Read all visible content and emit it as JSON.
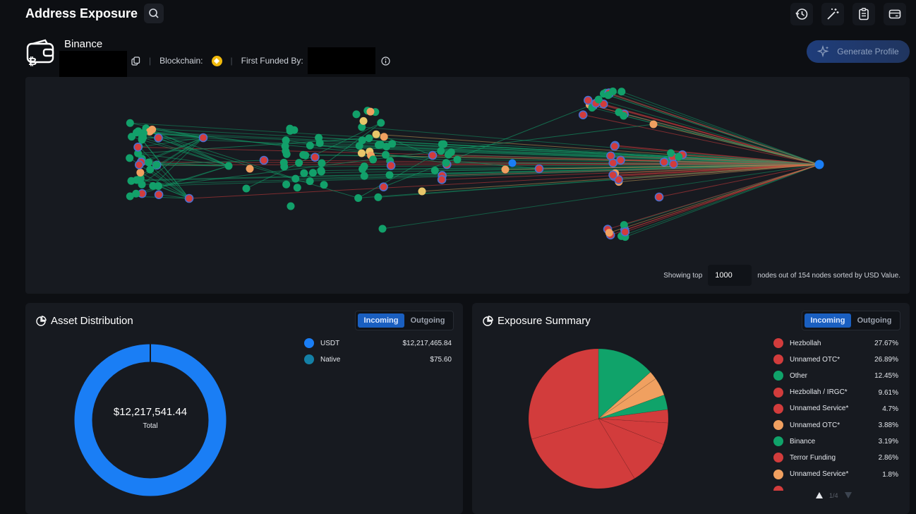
{
  "header": {
    "title": "Address Exposure"
  },
  "entity": {
    "name": "Binance",
    "blockchain_label": "Blockchain:",
    "first_funded_label": "First Funded By:",
    "generate_label": "Generate Profile"
  },
  "graph": {
    "showing_prefix": "Showing top",
    "top_n": "1000",
    "showing_suffix": "nodes out of 154 nodes sorted by USD Value."
  },
  "asset_distribution": {
    "title": "Asset Distribution",
    "toggle": {
      "incoming": "Incoming",
      "outgoing": "Outgoing",
      "selected": "Incoming"
    },
    "total_value": "$12,217,541.44",
    "total_label": "Total",
    "items": [
      {
        "name": "USDT",
        "value": "$12,217,465.84",
        "color": "#1a7ef5"
      },
      {
        "name": "Native",
        "value": "$75.60",
        "color": "#1480a6"
      }
    ]
  },
  "exposure_summary": {
    "title": "Exposure Summary",
    "toggle": {
      "incoming": "Incoming",
      "outgoing": "Outgoing",
      "selected": "Incoming"
    },
    "items": [
      {
        "name": "Hezbollah",
        "value": "27.67%",
        "color": "#d23c3c"
      },
      {
        "name": "Unnamed OTC*",
        "value": "26.89%",
        "color": "#d23c3c"
      },
      {
        "name": "Other",
        "value": "12.45%",
        "color": "#10a36a"
      },
      {
        "name": "Hezbollah / IRGC*",
        "value": "9.61%",
        "color": "#d23c3c"
      },
      {
        "name": "Unnamed Service*",
        "value": "4.7%",
        "color": "#d23c3c"
      },
      {
        "name": "Unnamed OTC*",
        "value": "3.88%",
        "color": "#f0a060"
      },
      {
        "name": "Binance",
        "value": "3.19%",
        "color": "#10a36a"
      },
      {
        "name": "Terror Funding",
        "value": "2.86%",
        "color": "#d23c3c"
      },
      {
        "name": "Unnamed Service*",
        "value": "1.8%",
        "color": "#f0a060"
      }
    ],
    "pager": "1/4"
  },
  "colors": {
    "risk_high": "#d23c3c",
    "risk_medium": "#f0a060",
    "low": "#10a36a",
    "warning": "#e8c66a",
    "accent": "#1a7ef5"
  }
}
